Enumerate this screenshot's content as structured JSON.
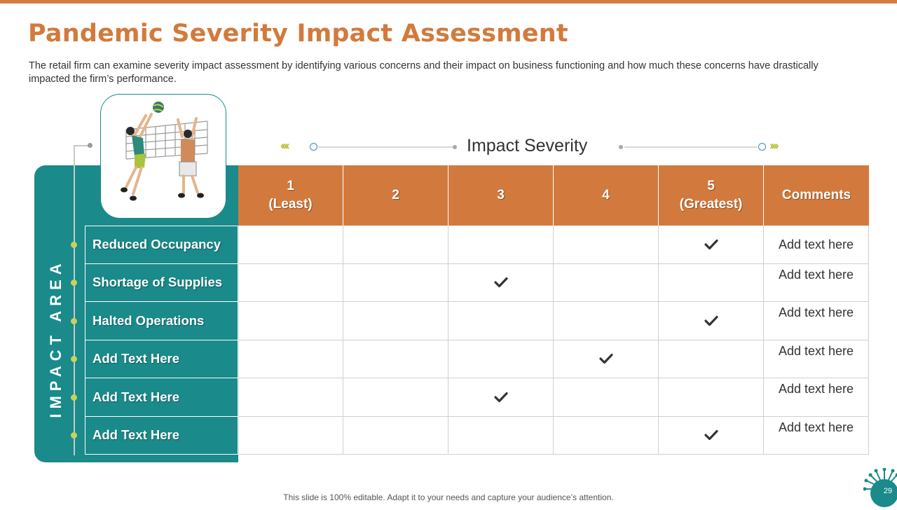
{
  "title": "Pandemic Severity Impact Assessment",
  "subtitle": "The retail firm can examine severity impact assessment by identifying various concerns and their impact on business functioning and how much these concerns have drastically impacted the firm’s performance.",
  "impact_area_label": "IMPACT AREA",
  "severity_title": "Impact Severity",
  "columns": [
    {
      "line1": "1",
      "line2": "(Least)"
    },
    {
      "line1": "2",
      "line2": ""
    },
    {
      "line1": "3",
      "line2": ""
    },
    {
      "line1": "4",
      "line2": ""
    },
    {
      "line1": "5",
      "line2": "(Greatest)"
    }
  ],
  "comments_header": "Comments",
  "rows": [
    {
      "label": "Reduced Occupancy",
      "severity": 5,
      "comment": "Add text here"
    },
    {
      "label": "Shortage of Supplies",
      "severity": 3,
      "comment": "Add text here"
    },
    {
      "label": "Halted Operations",
      "severity": 5,
      "comment": "Add text here"
    },
    {
      "label": "Add Text Here",
      "severity": 4,
      "comment": "Add text here"
    },
    {
      "label": "Add Text Here",
      "severity": 3,
      "comment": "Add text here"
    },
    {
      "label": "Add Text Here",
      "severity": 5,
      "comment": "Add text here"
    }
  ],
  "footer": "This slide is 100% editable. Adapt it to your needs and capture your audience’s attention.",
  "page_number": "29",
  "colors": {
    "accent": "#d27a3d",
    "teal": "#1a8a8a",
    "bullet": "#c7d35a"
  },
  "icons": {
    "check": "check-icon",
    "illustration": "volleyball-players-illustration",
    "decoration": "virus-icon"
  }
}
